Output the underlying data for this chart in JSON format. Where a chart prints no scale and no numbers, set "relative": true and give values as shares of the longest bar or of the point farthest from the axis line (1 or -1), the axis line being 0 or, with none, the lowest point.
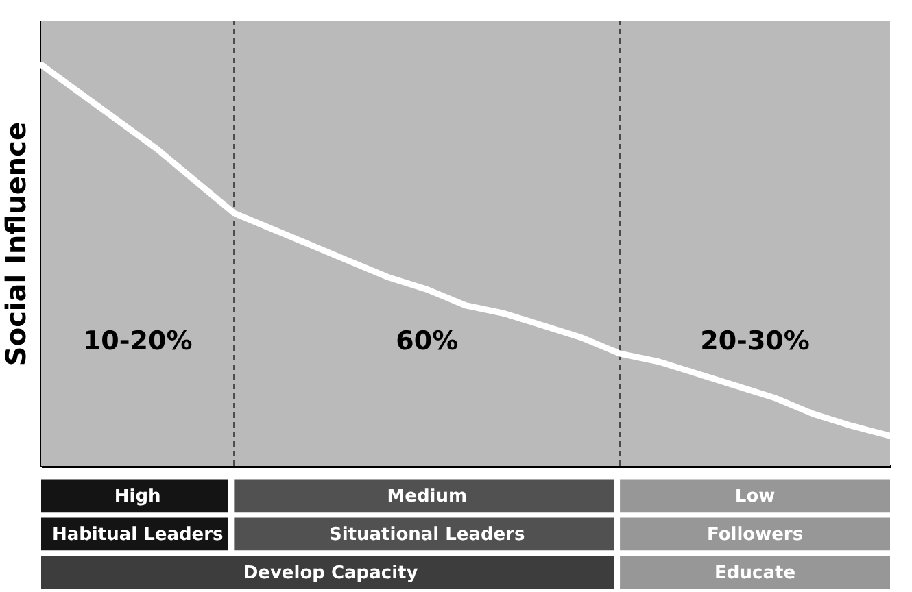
{
  "chart_data": {
    "type": "line",
    "relative": true,
    "ylabel": "Social Influence",
    "tick_labels": false,
    "grid": false,
    "categories": [
      null,
      null,
      null,
      null,
      null,
      null,
      null,
      null,
      null,
      null,
      null,
      null,
      null,
      null,
      null,
      null,
      null,
      null,
      null,
      null,
      null,
      null,
      null
    ],
    "series": [
      {
        "color": "#ffffff",
        "values": [
          1.0,
          0.93,
          0.86,
          0.79,
          0.71,
          0.63,
          0.59,
          0.55,
          0.51,
          0.47,
          0.44,
          0.4,
          0.38,
          0.35,
          0.32,
          0.28,
          0.26,
          0.23,
          0.2,
          0.17,
          0.13,
          0.1,
          0.075
        ]
      }
    ],
    "annotations": [
      "10-20%",
      "60%",
      "20-30%",
      "High",
      "Medium",
      "Low",
      "Habitual Leaders",
      "Situational Leaders",
      "Followers",
      "Develop Capacity",
      "Educate"
    ]
  }
}
